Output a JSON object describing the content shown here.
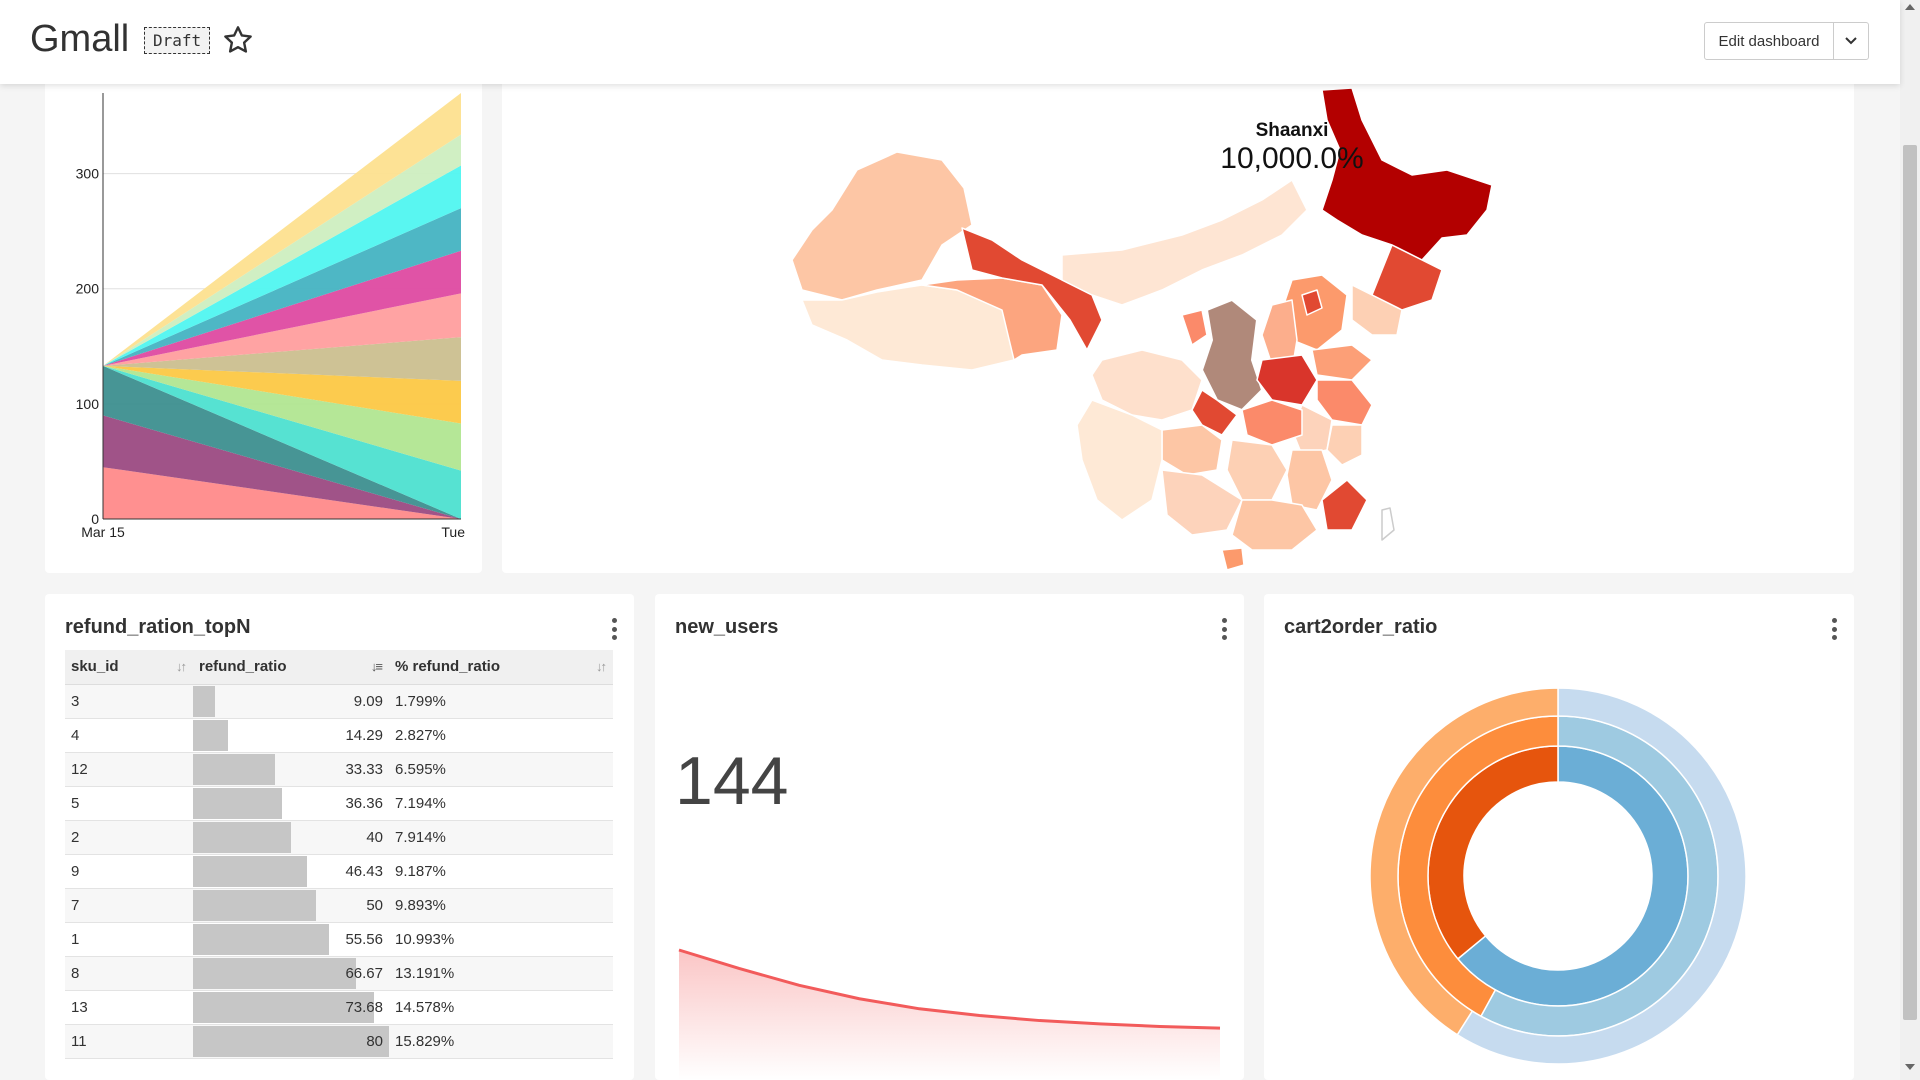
{
  "header": {
    "title": "Gmall",
    "draft_label": "Draft",
    "edit_label": "Edit dashboard"
  },
  "colors": {
    "accent_red": "#f25b5b",
    "bar_grey": "#c6c6c6",
    "map_highlight": "#b0897a"
  },
  "stream_chart": {
    "chart_data": {
      "type": "area",
      "x_tick_labels": [
        "Mar 15",
        "Tue"
      ],
      "y_ticks": [
        0,
        100,
        200,
        300
      ],
      "ylim": [
        0,
        370
      ],
      "grid": true,
      "bands": [
        {
          "color": "#ff8a8a",
          "start": [
            0,
            45
          ],
          "end": [
            0,
            0
          ]
        },
        {
          "color": "#9b4a82",
          "start": [
            45,
            90
          ],
          "end": [
            0,
            0
          ]
        },
        {
          "color": "#3d8f8f",
          "start": [
            90,
            133
          ],
          "end": [
            0,
            0
          ]
        },
        {
          "color": "#4de0d0",
          "start": [
            133,
            133
          ],
          "end": [
            0,
            42
          ]
        },
        {
          "color": "#b1e691",
          "start": [
            133,
            133
          ],
          "end": [
            42,
            83
          ]
        },
        {
          "color": "#fcc845",
          "start": [
            133,
            133
          ],
          "end": [
            83,
            120
          ]
        },
        {
          "color": "#cbbf8f",
          "start": [
            133,
            133
          ],
          "end": [
            120,
            158
          ]
        },
        {
          "color": "#ff9e9e",
          "start": [
            133,
            133
          ],
          "end": [
            158,
            196
          ]
        },
        {
          "color": "#de4aa1",
          "start": [
            133,
            133
          ],
          "end": [
            196,
            233
          ]
        },
        {
          "color": "#44b3c2",
          "start": [
            133,
            133
          ],
          "end": [
            233,
            270
          ]
        },
        {
          "color": "#50f5f0",
          "start": [
            133,
            133
          ],
          "end": [
            270,
            307
          ]
        },
        {
          "color": "#cdeec0",
          "start": [
            133,
            133
          ],
          "end": [
            307,
            334
          ]
        },
        {
          "color": "#fde08f",
          "start": [
            133,
            133
          ],
          "end": [
            334,
            370
          ]
        }
      ]
    }
  },
  "map": {
    "tooltip_region": "Shaanxi",
    "tooltip_value": "10,000.0%"
  },
  "refund_table": {
    "title": "refund_ration_topN",
    "columns": [
      "sku_id",
      "refund_ratio",
      "% refund_ratio"
    ],
    "sort_icons": [
      "↓↑",
      "↓≡",
      "↓↑"
    ],
    "rows": [
      {
        "sku_id": "3",
        "refund_ratio": "9.09",
        "pct": "1.799%",
        "frac": 0.114
      },
      {
        "sku_id": "4",
        "refund_ratio": "14.29",
        "pct": "2.827%",
        "frac": 0.179
      },
      {
        "sku_id": "12",
        "refund_ratio": "33.33",
        "pct": "6.595%",
        "frac": 0.417
      },
      {
        "sku_id": "5",
        "refund_ratio": "36.36",
        "pct": "7.194%",
        "frac": 0.455
      },
      {
        "sku_id": "2",
        "refund_ratio": "40",
        "pct": "7.914%",
        "frac": 0.5
      },
      {
        "sku_id": "9",
        "refund_ratio": "46.43",
        "pct": "9.187%",
        "frac": 0.58
      },
      {
        "sku_id": "7",
        "refund_ratio": "50",
        "pct": "9.893%",
        "frac": 0.625
      },
      {
        "sku_id": "1",
        "refund_ratio": "55.56",
        "pct": "10.993%",
        "frac": 0.695
      },
      {
        "sku_id": "8",
        "refund_ratio": "66.67",
        "pct": "13.191%",
        "frac": 0.833
      },
      {
        "sku_id": "13",
        "refund_ratio": "73.68",
        "pct": "14.578%",
        "frac": 0.921
      },
      {
        "sku_id": "11",
        "refund_ratio": "80",
        "pct": "15.829%",
        "frac": 1.0
      }
    ]
  },
  "new_users": {
    "title": "new_users",
    "value": "144",
    "trendline": [
      1.0,
      0.78,
      0.58,
      0.42,
      0.3,
      0.22,
      0.16,
      0.12,
      0.09,
      0.07
    ]
  },
  "cart2order": {
    "title": "cart2order_ratio",
    "chart_data": {
      "type": "pie",
      "rings": [
        {
          "name": "inner",
          "slices": [
            {
              "value": 0.64,
              "color": "#6baed6"
            },
            {
              "value": 0.36,
              "color": "#e6550d"
            }
          ]
        },
        {
          "name": "middle",
          "slices": [
            {
              "value": 0.58,
              "color": "#9ecae1"
            },
            {
              "value": 0.42,
              "color": "#fd8d3c"
            }
          ]
        },
        {
          "name": "outer",
          "slices": [
            {
              "value": 0.59,
              "color": "#c6dbef"
            },
            {
              "value": 0.41,
              "color": "#fdae6b"
            }
          ]
        }
      ]
    }
  }
}
